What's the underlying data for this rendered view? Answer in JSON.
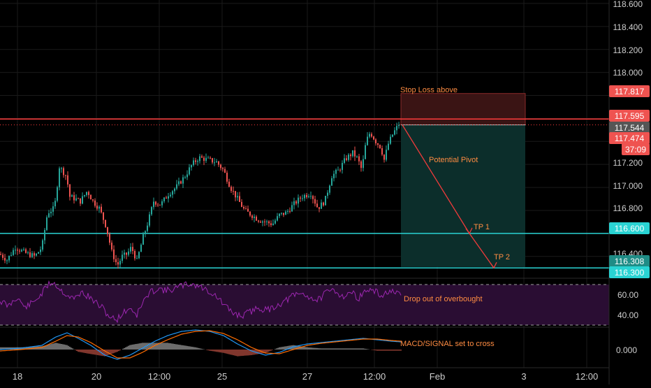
{
  "colors": {
    "background": "#000000",
    "grid": "#1a1a1a",
    "candle_up": "#26a69a",
    "candle_down": "#ef5350",
    "resistance": "#ff3b3b",
    "support": "#29d3d3",
    "annotation": "#ff8c42",
    "rsi_line": "#9c27b0",
    "rsi_band": "#2a0d33",
    "macd_line": "#2196f3",
    "signal_line": "#ff6d00",
    "axis_text": "#cfcfcf"
  },
  "chart_data": {
    "type": "candlestick",
    "price_axis": {
      "ticks": [
        "118.600",
        "118.400",
        "118.200",
        "118.000",
        "117.200",
        "117.000",
        "116.800",
        "116.400"
      ],
      "ylim": [
        116.21,
        118.63
      ]
    },
    "time_axis": {
      "labels": [
        "18",
        "20",
        "12:00",
        "25",
        "27",
        "12:00",
        "Feb",
        "3",
        "12:00"
      ],
      "timeframe": "15m"
    },
    "price_badges": [
      {
        "label": "117.817",
        "color": "#ef5350"
      },
      {
        "label": "117.595",
        "color": "#ef5350"
      },
      {
        "label": "117.544",
        "color": "#555555"
      },
      {
        "label": "117.474",
        "color": "#ef5350"
      },
      {
        "label": "37:09",
        "color": "#ef5350"
      },
      {
        "label": "116.600",
        "color": "#29d3d3"
      },
      {
        "label": "116.308",
        "color": "#1f8c86"
      },
      {
        "label": "116.300",
        "color": "#29d3d3"
      }
    ],
    "levels": {
      "resistance": 117.595,
      "last_price": 117.544,
      "support_1": 116.6,
      "support_2": 116.3
    },
    "trade_setup": {
      "entry": 117.544,
      "stop": 117.817,
      "target": 116.308
    },
    "annotations": {
      "stop_loss": "Stop Loss above",
      "pivot": "Potential Pivot",
      "tp1": "TP 1",
      "tp2": "TP 2",
      "rsi_note": "Drop out of overbought",
      "macd_note": "MACD/SIGNAL set to cross"
    },
    "rsi": {
      "ticks": [
        "60.00",
        "40.00"
      ],
      "overbought": 70,
      "oversold": 30
    },
    "macd": {
      "ticks": [
        "0.000"
      ]
    },
    "anchors": [
      [
        0,
        116.42
      ],
      [
        10,
        116.37
      ],
      [
        22,
        116.48
      ],
      [
        36,
        116.43
      ],
      [
        50,
        116.4
      ],
      [
        60,
        116.48
      ],
      [
        68,
        116.78
      ],
      [
        78,
        116.82
      ],
      [
        85,
        117.18
      ],
      [
        95,
        117.1
      ],
      [
        100,
        116.92
      ],
      [
        108,
        116.9
      ],
      [
        115,
        116.88
      ],
      [
        125,
        116.97
      ],
      [
        133,
        116.88
      ],
      [
        142,
        116.82
      ],
      [
        152,
        116.66
      ],
      [
        160,
        116.44
      ],
      [
        168,
        116.32
      ],
      [
        175,
        116.4
      ],
      [
        182,
        116.42
      ],
      [
        188,
        116.48
      ],
      [
        196,
        116.36
      ],
      [
        205,
        116.57
      ],
      [
        212,
        116.7
      ],
      [
        220,
        116.88
      ],
      [
        230,
        116.85
      ],
      [
        242,
        116.95
      ],
      [
        252,
        117.0
      ],
      [
        265,
        117.1
      ],
      [
        275,
        117.2
      ],
      [
        285,
        117.26
      ],
      [
        298,
        117.24
      ],
      [
        310,
        117.22
      ],
      [
        320,
        117.15
      ],
      [
        330,
        117.0
      ],
      [
        340,
        116.9
      ],
      [
        350,
        116.8
      ],
      [
        360,
        116.76
      ],
      [
        370,
        116.72
      ],
      [
        380,
        116.7
      ],
      [
        390,
        116.68
      ],
      [
        400,
        116.76
      ],
      [
        410,
        116.78
      ],
      [
        420,
        116.85
      ],
      [
        432,
        116.92
      ],
      [
        445,
        116.95
      ],
      [
        455,
        116.82
      ],
      [
        465,
        116.88
      ],
      [
        475,
        117.1
      ],
      [
        485,
        117.15
      ],
      [
        495,
        117.25
      ],
      [
        505,
        117.3
      ],
      [
        512,
        117.25
      ],
      [
        518,
        117.15
      ],
      [
        524,
        117.4
      ],
      [
        530,
        117.48
      ],
      [
        538,
        117.4
      ],
      [
        545,
        117.35
      ],
      [
        550,
        117.24
      ],
      [
        556,
        117.38
      ],
      [
        562,
        117.46
      ],
      [
        568,
        117.52
      ],
      [
        572,
        117.544
      ]
    ],
    "rsi_anchors": [
      [
        0,
        430
      ],
      [
        12,
        438
      ],
      [
        24,
        425
      ],
      [
        36,
        440
      ],
      [
        48,
        432
      ],
      [
        60,
        420
      ],
      [
        68,
        408
      ],
      [
        76,
        403
      ],
      [
        86,
        414
      ],
      [
        96,
        422
      ],
      [
        106,
        428
      ],
      [
        116,
        418
      ],
      [
        126,
        424
      ],
      [
        136,
        432
      ],
      [
        146,
        440
      ],
      [
        156,
        452
      ],
      [
        166,
        458
      ],
      [
        176,
        448
      ],
      [
        186,
        440
      ],
      [
        196,
        450
      ],
      [
        206,
        430
      ],
      [
        216,
        418
      ],
      [
        226,
        412
      ],
      [
        238,
        416
      ],
      [
        250,
        413
      ],
      [
        262,
        408
      ],
      [
        274,
        406
      ],
      [
        286,
        410
      ],
      [
        298,
        416
      ],
      [
        310,
        424
      ],
      [
        322,
        438
      ],
      [
        334,
        448
      ],
      [
        346,
        452
      ],
      [
        358,
        446
      ],
      [
        370,
        440
      ],
      [
        382,
        444
      ],
      [
        394,
        438
      ],
      [
        406,
        432
      ],
      [
        418,
        424
      ],
      [
        430,
        420
      ],
      [
        442,
        424
      ],
      [
        454,
        430
      ],
      [
        466,
        420
      ],
      [
        478,
        414
      ],
      [
        490,
        424
      ],
      [
        502,
        418
      ],
      [
        514,
        426
      ],
      [
        526,
        414
      ],
      [
        538,
        418
      ],
      [
        548,
        424
      ],
      [
        556,
        416
      ],
      [
        566,
        420
      ],
      [
        574,
        424
      ]
    ],
    "macd_anchors": [
      [
        0,
        500
      ],
      [
        30,
        498
      ],
      [
        60,
        494
      ],
      [
        80,
        482
      ],
      [
        96,
        476
      ],
      [
        112,
        484
      ],
      [
        130,
        494
      ],
      [
        150,
        508
      ],
      [
        168,
        514
      ],
      [
        186,
        508
      ],
      [
        204,
        498
      ],
      [
        222,
        488
      ],
      [
        240,
        480
      ],
      [
        260,
        474
      ],
      [
        280,
        472
      ],
      [
        300,
        474
      ],
      [
        320,
        480
      ],
      [
        340,
        492
      ],
      [
        360,
        502
      ],
      [
        380,
        508
      ],
      [
        400,
        504
      ],
      [
        420,
        496
      ],
      [
        440,
        492
      ],
      [
        460,
        490
      ],
      [
        480,
        488
      ],
      [
        500,
        486
      ],
      [
        520,
        484
      ],
      [
        540,
        486
      ],
      [
        560,
        488
      ],
      [
        574,
        489
      ]
    ],
    "signal_anchors": [
      [
        0,
        502
      ],
      [
        30,
        500
      ],
      [
        60,
        497
      ],
      [
        80,
        488
      ],
      [
        96,
        480
      ],
      [
        112,
        482
      ],
      [
        130,
        490
      ],
      [
        150,
        502
      ],
      [
        168,
        512
      ],
      [
        186,
        512
      ],
      [
        204,
        504
      ],
      [
        222,
        494
      ],
      [
        240,
        486
      ],
      [
        260,
        478
      ],
      [
        280,
        474
      ],
      [
        300,
        473
      ],
      [
        320,
        477
      ],
      [
        340,
        486
      ],
      [
        360,
        497
      ],
      [
        380,
        505
      ],
      [
        400,
        506
      ],
      [
        420,
        500
      ],
      [
        440,
        494
      ],
      [
        460,
        491
      ],
      [
        480,
        489
      ],
      [
        500,
        487
      ],
      [
        520,
        485
      ],
      [
        540,
        485
      ],
      [
        560,
        487
      ],
      [
        574,
        488
      ]
    ]
  }
}
